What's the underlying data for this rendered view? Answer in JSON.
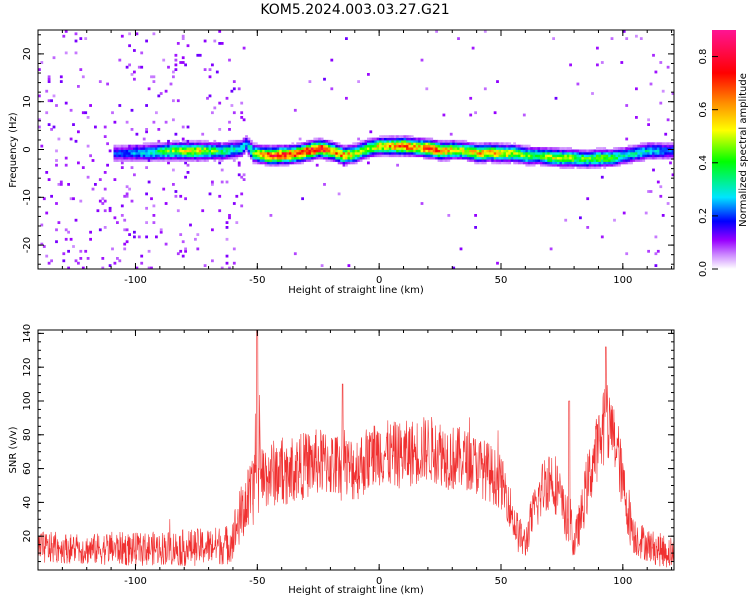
{
  "figure_title": "KOM5.2024.003.03.27.G21",
  "chart_data": [
    {
      "type": "heatmap",
      "title": "KOM5.2024.003.03.27.G21",
      "xlabel": "Height of straight line (km)",
      "ylabel": "Frequency (Hz)",
      "xlim": [
        -140,
        121
      ],
      "ylim": [
        -25,
        25
      ],
      "x_ticks": [
        -100,
        -50,
        0,
        50,
        100
      ],
      "y_ticks": [
        -20,
        -10,
        0,
        10,
        20
      ],
      "colorbar": {
        "label": "Normalized spectral amplitude",
        "range": [
          0.0,
          0.9
        ],
        "ticks": [
          0.0,
          0.2,
          0.4,
          0.6,
          0.8
        ],
        "colors": [
          "#ffffff",
          "#9900ff",
          "#0000ff",
          "#00e5ff",
          "#00ff00",
          "#ffff00",
          "#ff8800",
          "#ff0000",
          "#ff1493"
        ]
      },
      "ridge": {
        "x": [
          -105,
          -95,
          -85,
          -75,
          -65,
          -57,
          -55,
          -52,
          -45,
          -35,
          -25,
          -20,
          -15,
          -10,
          -5,
          0,
          5,
          10,
          15,
          20,
          25,
          30,
          35,
          40,
          45,
          50,
          55,
          60,
          65,
          70,
          75,
          80,
          85,
          90,
          95,
          100,
          105,
          110,
          115,
          121
        ],
        "y": [
          -1.0,
          -0.8,
          -0.5,
          -0.5,
          -0.6,
          0.0,
          1.0,
          -1.0,
          -1.5,
          -1.2,
          0.0,
          -0.5,
          -1.5,
          -1.0,
          0.0,
          0.5,
          0.5,
          0.5,
          0.3,
          0.0,
          -0.5,
          -0.3,
          -0.5,
          -1.0,
          -0.8,
          -1.0,
          -1.0,
          -1.5,
          -1.5,
          -1.8,
          -2.0,
          -2.0,
          -2.2,
          -2.0,
          -2.0,
          -1.5,
          -1.0,
          -0.5,
          -0.5,
          -0.5
        ],
        "amplitude": [
          0.2,
          0.3,
          0.45,
          0.55,
          0.35,
          0.3,
          0.25,
          0.45,
          0.75,
          0.7,
          0.8,
          0.6,
          0.65,
          0.5,
          0.45,
          0.55,
          0.6,
          0.7,
          0.6,
          0.75,
          0.65,
          0.55,
          0.5,
          0.6,
          0.6,
          0.55,
          0.5,
          0.45,
          0.4,
          0.5,
          0.5,
          0.45,
          0.4,
          0.45,
          0.4,
          0.3,
          0.3,
          0.3,
          0.25,
          0.2
        ]
      },
      "grid": false
    },
    {
      "type": "line",
      "xlabel": "Height of straight line (km)",
      "ylabel": "SNR (v/v)",
      "xlim": [
        -140,
        121
      ],
      "ylim": [
        0,
        142
      ],
      "x_ticks": [
        -100,
        -50,
        0,
        50,
        100
      ],
      "y_ticks": [
        20,
        40,
        60,
        80,
        100,
        120,
        140
      ],
      "series": [
        {
          "color": "#f03030",
          "envelope": {
            "x": [
              -140,
              -130,
              -120,
              -110,
              -100,
              -90,
              -80,
              -70,
              -62,
              -60,
              -58,
              -55,
              -52,
              -50,
              -48,
              -45,
              -40,
              -35,
              -30,
              -25,
              -20,
              -15,
              -10,
              -5,
              0,
              5,
              10,
              15,
              20,
              25,
              30,
              35,
              40,
              45,
              50,
              53,
              55,
              57,
              60,
              62,
              65,
              68,
              70,
              73,
              75,
              78,
              80,
              83,
              85,
              88,
              90,
              93,
              95,
              98,
              100,
              103,
              105,
              110,
              115,
              121
            ],
            "y": [
              13,
              13,
              12,
              13,
              12,
              13,
              13,
              14,
              15,
              20,
              28,
              38,
              45,
              52,
              55,
              57,
              58,
              60,
              62,
              64,
              63,
              60,
              60,
              65,
              70,
              68,
              68,
              70,
              72,
              70,
              66,
              66,
              62,
              58,
              52,
              42,
              30,
              22,
              15,
              28,
              40,
              52,
              55,
              50,
              38,
              22,
              15,
              32,
              48,
              65,
              75,
              82,
              85,
              70,
              50,
              30,
              20,
              15,
              12,
              10
            ],
            "noise": [
              10,
              9,
              9,
              10,
              10,
              10,
              11,
              11,
              12,
              14,
              16,
              20,
              20,
              20,
              20,
              20,
              20,
              20,
              20,
              20,
              20,
              20,
              20,
              20,
              20,
              20,
              20,
              20,
              20,
              20,
              20,
              18,
              18,
              18,
              16,
              14,
              12,
              12,
              10,
              12,
              16,
              18,
              20,
              18,
              16,
              12,
              10,
              14,
              18,
              20,
              20,
              20,
              20,
              20,
              18,
              16,
              12,
              10,
              10,
              10
            ]
          },
          "peaks": [
            {
              "x": -50,
              "y": 142
            },
            {
              "x": -15,
              "y": 110
            },
            {
              "x": 93,
              "y": 132
            },
            {
              "x": 78,
              "y": 100
            }
          ]
        }
      ],
      "grid": false
    }
  ]
}
